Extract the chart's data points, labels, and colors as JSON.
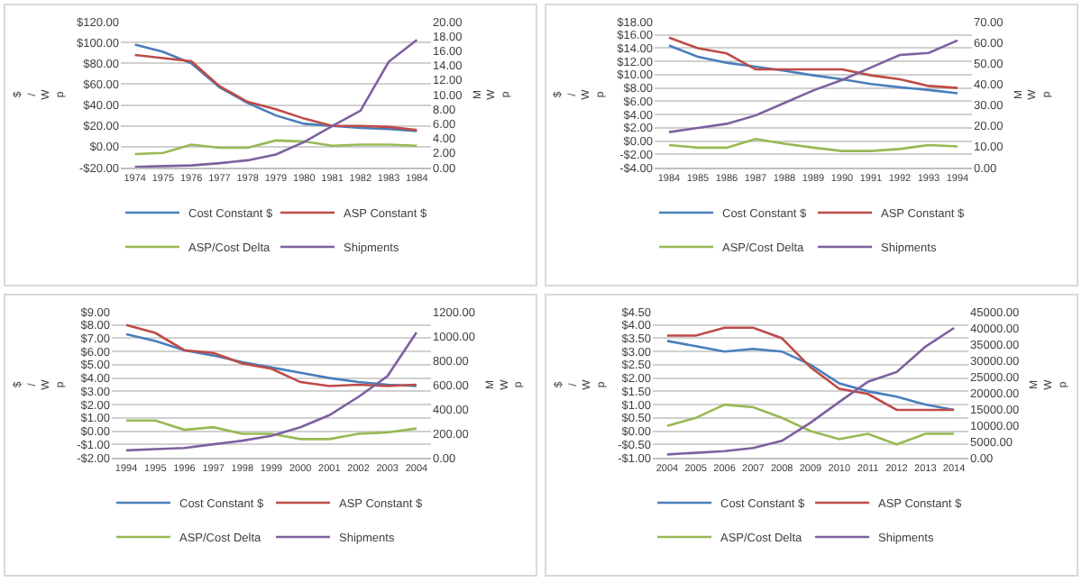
{
  "chart_data": [
    {
      "type": "line",
      "categories": [
        "1974",
        "1975",
        "1976",
        "1977",
        "1978",
        "1979",
        "1980",
        "1981",
        "1982",
        "1983",
        "1984"
      ],
      "ylabel": "$/Wp",
      "y2label": "MWp",
      "grid": "y",
      "legend": "bottom",
      "marker": "none",
      "ylim": [
        -20,
        120
      ],
      "yticks": [
        {
          "value": -20,
          "label": "-$20.00"
        },
        {
          "value": 0,
          "label": "$0.00"
        },
        {
          "value": 20,
          "label": "$20.00"
        },
        {
          "value": 40,
          "label": "$40.00"
        },
        {
          "value": 60,
          "label": "$60.00"
        },
        {
          "value": 80,
          "label": "$80.00"
        },
        {
          "value": 100,
          "label": "$100.00"
        },
        {
          "value": 120,
          "label": "$120.00"
        }
      ],
      "y2lim": [
        0,
        20
      ],
      "y2ticks": [
        {
          "value": 0,
          "label": "0.00"
        },
        {
          "value": 2,
          "label": "2.00"
        },
        {
          "value": 4,
          "label": "4.00"
        },
        {
          "value": 6,
          "label": "6.00"
        },
        {
          "value": 8,
          "label": "8.00"
        },
        {
          "value": 10,
          "label": "10.00"
        },
        {
          "value": 12,
          "label": "12.00"
        },
        {
          "value": 14,
          "label": "14.00"
        },
        {
          "value": 16,
          "label": "16.00"
        },
        {
          "value": 18,
          "label": "18.00"
        },
        {
          "value": 20,
          "label": "20.00"
        }
      ],
      "series": [
        {
          "name": "Cost Constant $",
          "color": "#4a7ebb",
          "values": [
            98,
            91,
            80,
            57,
            42,
            30,
            22,
            20,
            18,
            17,
            15
          ]
        },
        {
          "name": "ASP Constant $",
          "color": "#be4b48",
          "values": [
            88,
            85,
            82,
            58,
            43,
            36,
            27,
            20,
            20,
            19,
            16
          ]
        },
        {
          "name": "ASP/Cost Delta",
          "color": "#98b954",
          "values": [
            -7,
            -6,
            2,
            -1,
            -1,
            6,
            5,
            1,
            2,
            2,
            1
          ]
        },
        {
          "name": "Shipments",
          "color": "#7d60a0",
          "axis": "y2",
          "values": [
            0.1,
            0.2,
            0.3,
            0.6,
            1.0,
            1.8,
            3.5,
            5.7,
            7.8,
            14.5,
            17.5
          ]
        }
      ]
    },
    {
      "type": "line",
      "categories": [
        "1984",
        "1985",
        "1986",
        "1987",
        "1988",
        "1989",
        "1990",
        "1991",
        "1992",
        "1993",
        "1994"
      ],
      "ylabel": "$/Wp",
      "y2label": "MWp",
      "grid": "y",
      "legend": "bottom",
      "marker": "none",
      "ylim": [
        -4,
        18
      ],
      "yticks": [
        {
          "value": -4,
          "label": "-$4.00"
        },
        {
          "value": -2,
          "label": "-$2.00"
        },
        {
          "value": 0,
          "label": "$0.00"
        },
        {
          "value": 2,
          "label": "$2.00"
        },
        {
          "value": 4,
          "label": "$4.00"
        },
        {
          "value": 6,
          "label": "$6.00"
        },
        {
          "value": 8,
          "label": "$8.00"
        },
        {
          "value": 10,
          "label": "$10.00"
        },
        {
          "value": 12,
          "label": "$12.00"
        },
        {
          "value": 14,
          "label": "$14.00"
        },
        {
          "value": 16,
          "label": "$16.00"
        },
        {
          "value": 18,
          "label": "$18.00"
        }
      ],
      "y2lim": [
        0,
        70
      ],
      "y2ticks": [
        {
          "value": 0,
          "label": "0.00"
        },
        {
          "value": 10,
          "label": "10.00"
        },
        {
          "value": 20,
          "label": "20.00"
        },
        {
          "value": 30,
          "label": "30.00"
        },
        {
          "value": 40,
          "label": "40.00"
        },
        {
          "value": 50,
          "label": "50.00"
        },
        {
          "value": 60,
          "label": "60.00"
        },
        {
          "value": 70,
          "label": "70.00"
        }
      ],
      "series": [
        {
          "name": "Cost Constant $",
          "color": "#4a7ebb",
          "values": [
            14.4,
            12.7,
            11.8,
            11.2,
            10.6,
            9.9,
            9.3,
            8.6,
            8.1,
            7.7,
            7.2
          ]
        },
        {
          "name": "ASP Constant $",
          "color": "#be4b48",
          "values": [
            15.6,
            14.0,
            13.2,
            10.8,
            10.8,
            10.8,
            10.8,
            9.9,
            9.3,
            8.3,
            8.0
          ]
        },
        {
          "name": "ASP/Cost Delta",
          "color": "#98b954",
          "values": [
            -0.6,
            -1.0,
            -1.0,
            0.3,
            -0.4,
            -1.0,
            -1.5,
            -1.5,
            -1.2,
            -0.6,
            -0.8
          ]
        },
        {
          "name": "Shipments",
          "color": "#7d60a0",
          "axis": "y2",
          "values": [
            17,
            19,
            21,
            25,
            31,
            37,
            42,
            48,
            54,
            55,
            61
          ]
        }
      ]
    },
    {
      "type": "line",
      "categories": [
        "1994",
        "1995",
        "1996",
        "1997",
        "1998",
        "1999",
        "2000",
        "2001",
        "2002",
        "2003",
        "2004"
      ],
      "ylabel": "$/Wp",
      "y2label": "MWp",
      "grid": "y",
      "legend": "bottom",
      "marker": "none",
      "ylim": [
        -2,
        9
      ],
      "yticks": [
        {
          "value": -2,
          "label": "-$2.00"
        },
        {
          "value": -1,
          "label": "-$1.00"
        },
        {
          "value": 0,
          "label": "$0.00"
        },
        {
          "value": 1,
          "label": "$1.00"
        },
        {
          "value": 2,
          "label": "$2.00"
        },
        {
          "value": 3,
          "label": "$3.00"
        },
        {
          "value": 4,
          "label": "$4.00"
        },
        {
          "value": 5,
          "label": "$5.00"
        },
        {
          "value": 6,
          "label": "$6.00"
        },
        {
          "value": 7,
          "label": "$7.00"
        },
        {
          "value": 8,
          "label": "$8.00"
        },
        {
          "value": 9,
          "label": "$9.00"
        }
      ],
      "y2lim": [
        0,
        1200
      ],
      "y2ticks": [
        {
          "value": 0,
          "label": "0.00"
        },
        {
          "value": 200,
          "label": "200.00"
        },
        {
          "value": 400,
          "label": "400.00"
        },
        {
          "value": 600,
          "label": "600.00"
        },
        {
          "value": 800,
          "label": "800.00"
        },
        {
          "value": 1000,
          "label": "1000.00"
        },
        {
          "value": 1200,
          "label": "1200.00"
        }
      ],
      "series": [
        {
          "name": "Cost Constant $",
          "color": "#4a7ebb",
          "values": [
            7.3,
            6.8,
            6.1,
            5.7,
            5.2,
            4.8,
            4.4,
            4.0,
            3.7,
            3.5,
            3.4
          ]
        },
        {
          "name": "ASP Constant $",
          "color": "#be4b48",
          "values": [
            8.0,
            7.4,
            6.1,
            5.9,
            5.1,
            4.7,
            3.7,
            3.4,
            3.5,
            3.4,
            3.5
          ]
        },
        {
          "name": "ASP/Cost Delta",
          "color": "#98b954",
          "values": [
            0.8,
            0.8,
            0.1,
            0.3,
            -0.2,
            -0.2,
            -0.6,
            -0.6,
            -0.2,
            -0.1,
            0.2
          ]
        },
        {
          "name": "Shipments",
          "color": "#7d60a0",
          "axis": "y2",
          "values": [
            60,
            70,
            80,
            110,
            140,
            180,
            250,
            350,
            500,
            670,
            1030
          ]
        }
      ]
    },
    {
      "type": "line",
      "categories": [
        "2004",
        "2005",
        "2006",
        "2007",
        "2008",
        "2009",
        "2010",
        "2011",
        "2012",
        "2013",
        "2014"
      ],
      "ylabel": "$/Wp",
      "y2label": "MWp",
      "grid": "y",
      "legend": "bottom",
      "marker": "none",
      "ylim": [
        -1,
        4.5
      ],
      "yticks": [
        {
          "value": -1,
          "label": "-$1.00"
        },
        {
          "value": -0.5,
          "label": "-$0.50"
        },
        {
          "value": 0,
          "label": "$0.00"
        },
        {
          "value": 0.5,
          "label": "$0.50"
        },
        {
          "value": 1,
          "label": "$1.00"
        },
        {
          "value": 1.5,
          "label": "$1.50"
        },
        {
          "value": 2,
          "label": "$2.00"
        },
        {
          "value": 2.5,
          "label": "$2.50"
        },
        {
          "value": 3,
          "label": "$3.00"
        },
        {
          "value": 3.5,
          "label": "$3.50"
        },
        {
          "value": 4,
          "label": "$4.00"
        },
        {
          "value": 4.5,
          "label": "$4.50"
        }
      ],
      "y2lim": [
        0,
        45000
      ],
      "y2ticks": [
        {
          "value": 0,
          "label": "0.00"
        },
        {
          "value": 5000,
          "label": "5000.00"
        },
        {
          "value": 10000,
          "label": "10000.00"
        },
        {
          "value": 15000,
          "label": "15000.00"
        },
        {
          "value": 20000,
          "label": "20000.00"
        },
        {
          "value": 25000,
          "label": "25000.00"
        },
        {
          "value": 30000,
          "label": "30000.00"
        },
        {
          "value": 35000,
          "label": "35000.00"
        },
        {
          "value": 40000,
          "label": "40000.00"
        },
        {
          "value": 45000,
          "label": "45000.00"
        }
      ],
      "series": [
        {
          "name": "Cost Constant $",
          "color": "#4a7ebb",
          "values": [
            3.4,
            3.2,
            3.0,
            3.1,
            3.0,
            2.5,
            1.8,
            1.5,
            1.3,
            1.0,
            0.8
          ]
        },
        {
          "name": "ASP Constant $",
          "color": "#be4b48",
          "values": [
            3.6,
            3.6,
            3.9,
            3.9,
            3.5,
            2.4,
            1.6,
            1.4,
            0.8,
            0.8,
            0.8
          ]
        },
        {
          "name": "ASP/Cost Delta",
          "color": "#98b954",
          "values": [
            0.2,
            0.5,
            1.0,
            0.9,
            0.5,
            0.0,
            -0.3,
            -0.1,
            -0.5,
            -0.1,
            -0.1
          ]
        },
        {
          "name": "Shipments",
          "color": "#7d60a0",
          "axis": "y2",
          "values": [
            1000,
            1500,
            2000,
            3000,
            5200,
            10800,
            17200,
            23400,
            26400,
            34200,
            40000
          ]
        }
      ]
    }
  ]
}
